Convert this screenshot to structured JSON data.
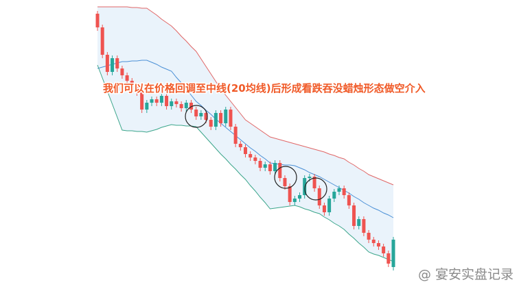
{
  "chart_data": {
    "type": "candlestick",
    "annotation": "我们可以在价格回调至中线(20均线)后形成看跌吞没蜡烛形态做空介入",
    "watermark": "@ 宴安实盘记录",
    "ylim": [
      0,
      425
    ],
    "up_color": "#26a69a",
    "down_color": "#ef5350",
    "open": [
      405,
      385,
      345,
      320,
      340,
      325,
      315,
      307,
      300,
      290,
      265,
      275,
      280,
      275,
      285,
      270,
      277,
      273,
      267,
      275,
      265,
      255,
      260,
      250,
      240,
      260,
      245,
      265,
      240,
      215,
      210,
      200,
      195,
      190,
      180,
      185,
      175,
      187,
      165,
      153,
      130,
      135,
      140,
      165,
      167,
      150,
      125,
      115,
      135,
      145,
      150,
      140,
      125,
      95,
      105,
      85,
      75,
      70,
      65,
      55,
      35
    ],
    "high": [
      409,
      389,
      349,
      344,
      344,
      329,
      319,
      311,
      304,
      294,
      279,
      284,
      284,
      289,
      289,
      281,
      281,
      277,
      279,
      279,
      269,
      264,
      264,
      254,
      264,
      264,
      269,
      269,
      244,
      219,
      214,
      204,
      199,
      194,
      189,
      189,
      191,
      191,
      169,
      157,
      139,
      144,
      169,
      171,
      171,
      154,
      129,
      139,
      149,
      154,
      154,
      144,
      129,
      109,
      109,
      89,
      79,
      74,
      69,
      59,
      79
    ],
    "low": [
      380,
      340,
      315,
      315,
      320,
      310,
      302,
      295,
      285,
      260,
      260,
      270,
      270,
      270,
      265,
      265,
      268,
      262,
      262,
      260,
      250,
      250,
      245,
      235,
      235,
      240,
      240,
      235,
      210,
      205,
      195,
      190,
      185,
      175,
      175,
      170,
      170,
      160,
      148,
      125,
      125,
      130,
      135,
      160,
      145,
      120,
      110,
      110,
      130,
      140,
      135,
      120,
      90,
      90,
      80,
      70,
      65,
      60,
      50,
      35,
      30
    ],
    "close": [
      385,
      345,
      320,
      340,
      325,
      315,
      307,
      300,
      290,
      265,
      275,
      280,
      275,
      285,
      270,
      277,
      273,
      267,
      275,
      265,
      255,
      260,
      250,
      240,
      260,
      245,
      265,
      240,
      215,
      210,
      200,
      195,
      190,
      180,
      185,
      175,
      187,
      165,
      153,
      130,
      135,
      140,
      165,
      167,
      150,
      125,
      115,
      135,
      145,
      150,
      140,
      125,
      95,
      105,
      85,
      75,
      70,
      65,
      55,
      40,
      75
    ],
    "upper": [
      415,
      415,
      415,
      415,
      415,
      415,
      415,
      414,
      414,
      413,
      413,
      408,
      403,
      397,
      392,
      387,
      380,
      372,
      365,
      357,
      350,
      339,
      328,
      317,
      306,
      295,
      286,
      277,
      268,
      259,
      250,
      245,
      240,
      235,
      230,
      225,
      223,
      221,
      219,
      217,
      215,
      213,
      211,
      209,
      207,
      205,
      203,
      200,
      198,
      195,
      193,
      188,
      184,
      179,
      175,
      170,
      167,
      164,
      161,
      158,
      155
    ],
    "middle": [
      325,
      327,
      329,
      331,
      333,
      335,
      335,
      336,
      336,
      337,
      337,
      334,
      331,
      327,
      324,
      321,
      312,
      304,
      295,
      286,
      277,
      271,
      264,
      258,
      251,
      245,
      239,
      233,
      227,
      221,
      215,
      209,
      204,
      198,
      193,
      187,
      186,
      185,
      184,
      184,
      183,
      180,
      177,
      173,
      170,
      167,
      163,
      159,
      155,
      151,
      147,
      143,
      138,
      134,
      129,
      125,
      121,
      118,
      114,
      111,
      107
    ],
    "lower": [
      330,
      311,
      292,
      273,
      254,
      235,
      234,
      234,
      233,
      233,
      232,
      234,
      236,
      239,
      241,
      243,
      242,
      242,
      241,
      241,
      240,
      232,
      224,
      216,
      208,
      200,
      193,
      185,
      178,
      170,
      163,
      154,
      146,
      137,
      129,
      120,
      121,
      122,
      123,
      124,
      125,
      123,
      120,
      118,
      115,
      113,
      108,
      104,
      99,
      95,
      90,
      83,
      77,
      70,
      64,
      57,
      54,
      52,
      49,
      46,
      43
    ],
    "upper_color": "#e06666",
    "middle_color": "#4a8fd6",
    "lower_color": "#3aa58a",
    "band_fill": "#eaf3fb"
  }
}
